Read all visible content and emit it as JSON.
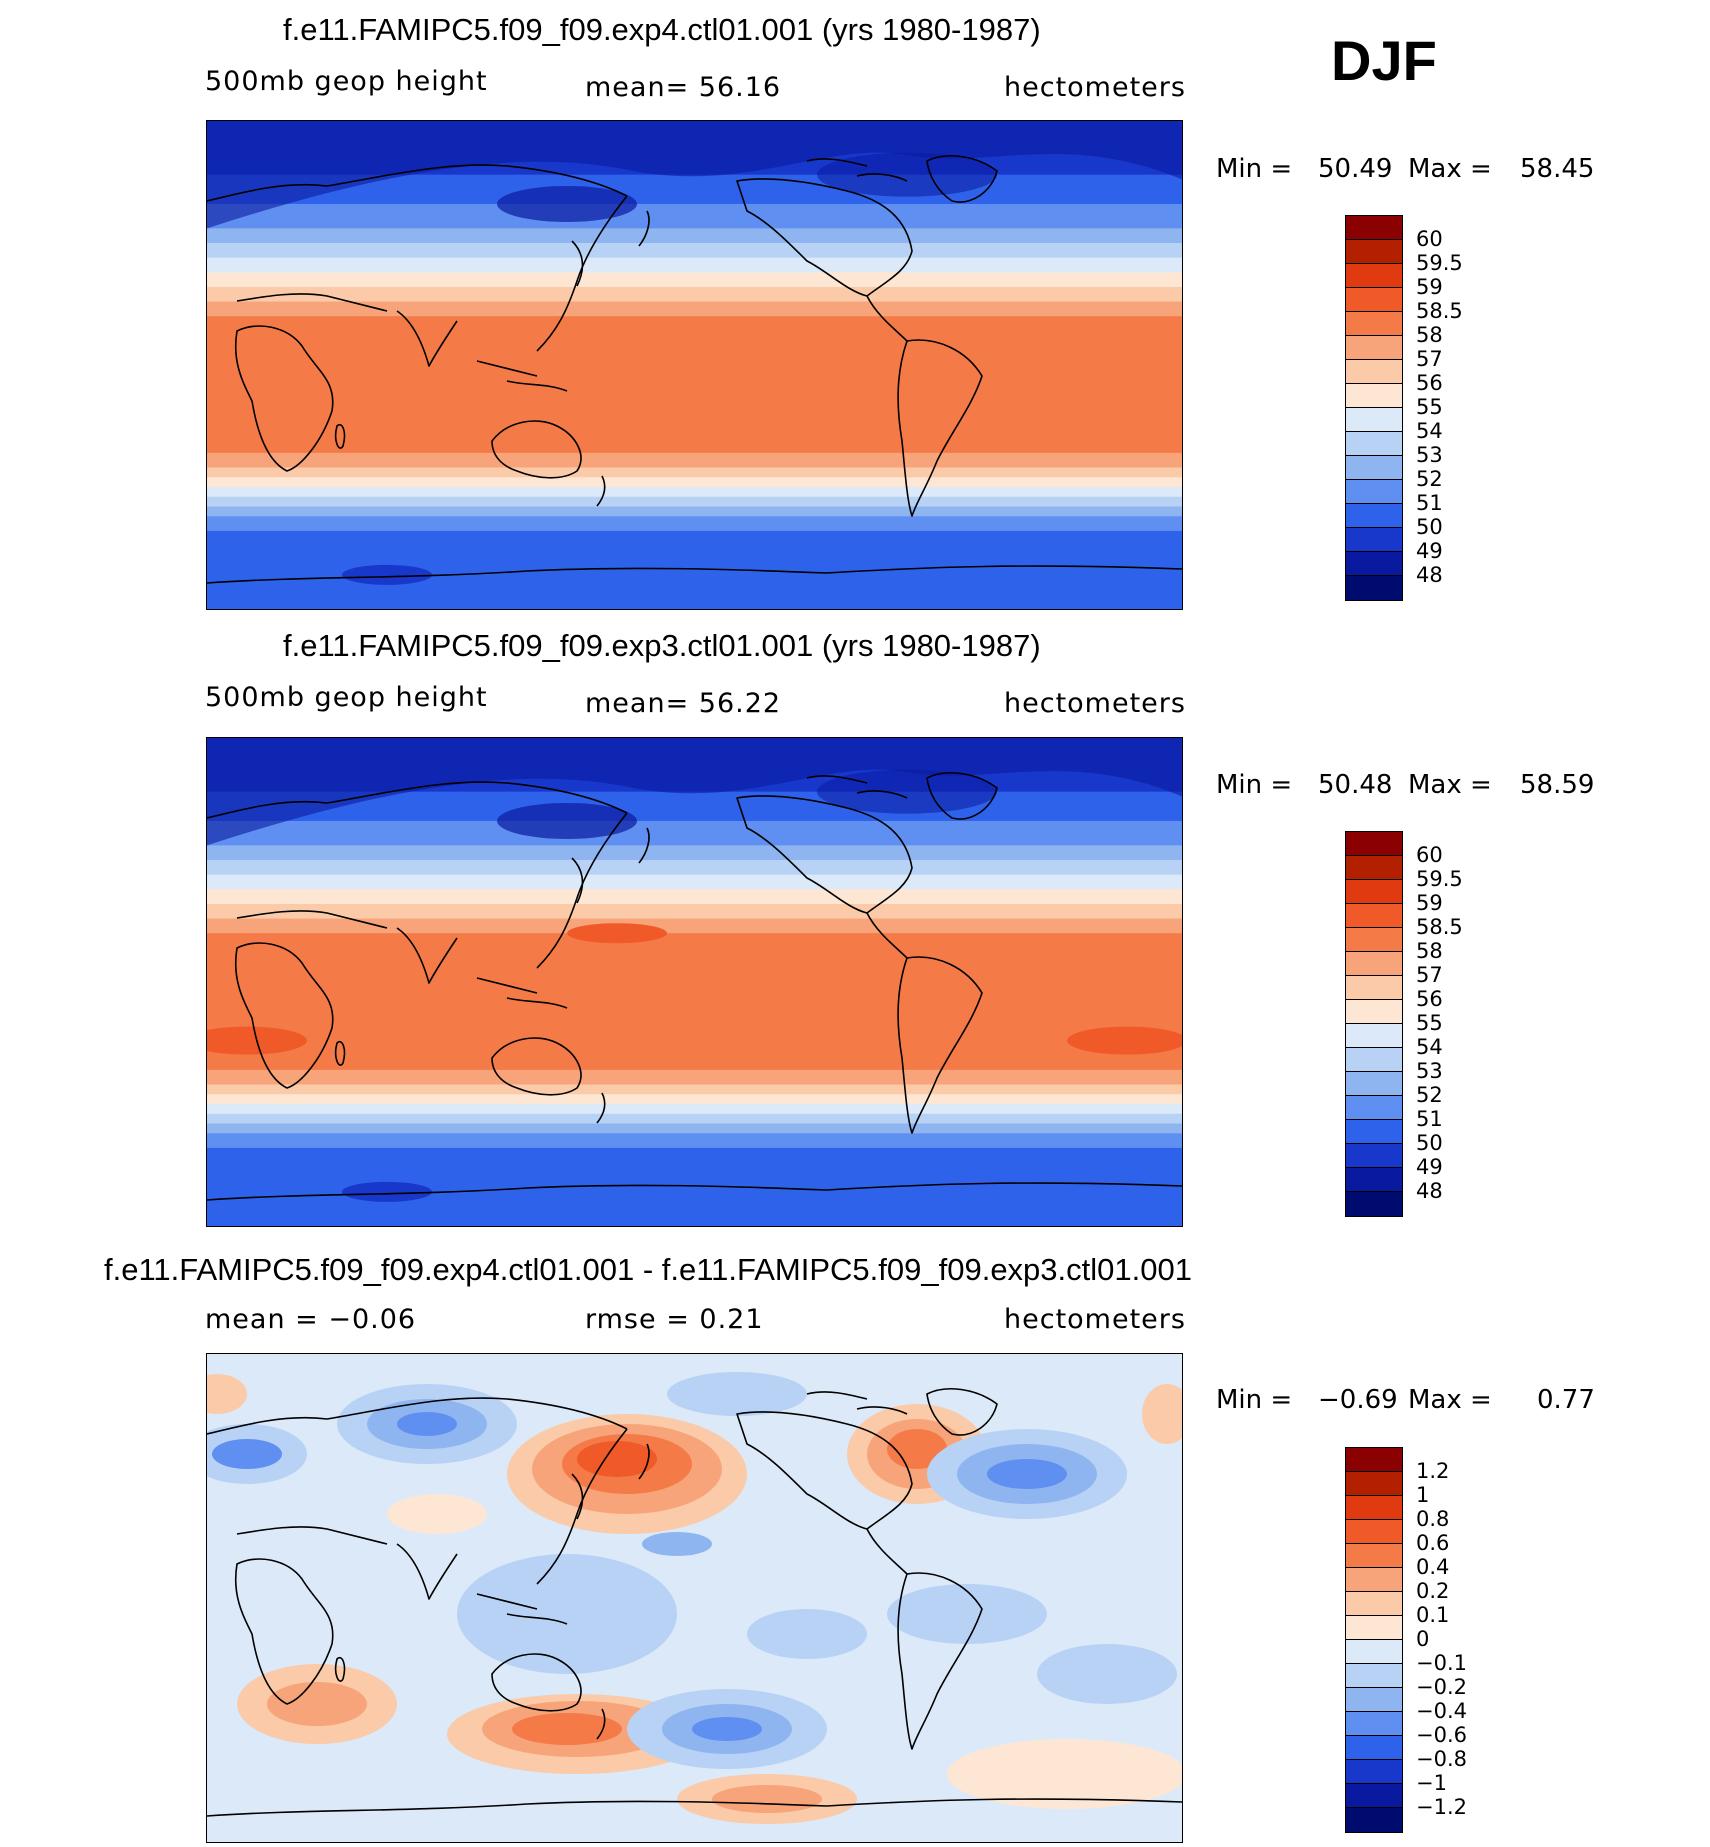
{
  "season": "DJF",
  "panels": [
    {
      "title": "f.e11.FAMIPC5.f09_f09.exp4.ctl01.001 (yrs 1980-1987)",
      "left_label": "500mb geop height",
      "center_label": "mean=   56.16",
      "right_label": "hectometers",
      "min_label": "Min =",
      "min_value": "50.49",
      "max_label": "Max =",
      "max_value": "58.45",
      "colorbar_labels": [
        "60",
        "59.5",
        "59",
        "58.5",
        "58",
        "57",
        "56",
        "55",
        "54",
        "53",
        "52",
        "51",
        "50",
        "49",
        "48"
      ],
      "colorbar_colors": [
        "#8b0000",
        "#b22000",
        "#e03a10",
        "#f05a28",
        "#f47a48",
        "#f7a47a",
        "#fbcaa8",
        "#fde7d4",
        "#dbe9f8",
        "#b8d2f5",
        "#8fb5f0",
        "#5f8ff0",
        "#2f62ea",
        "#1838cc",
        "#0a1aa0",
        "#000b70"
      ],
      "field": "height",
      "field_mean": 56.16,
      "field_min": 50.49,
      "field_max": 58.45
    },
    {
      "title": "f.e11.FAMIPC5.f09_f09.exp3.ctl01.001 (yrs 1980-1987)",
      "left_label": "500mb geop height",
      "center_label": "mean=   56.22",
      "right_label": "hectometers",
      "min_label": "Min =",
      "min_value": "50.48",
      "max_label": "Max =",
      "max_value": "58.59",
      "colorbar_labels": [
        "60",
        "59.5",
        "59",
        "58.5",
        "58",
        "57",
        "56",
        "55",
        "54",
        "53",
        "52",
        "51",
        "50",
        "49",
        "48"
      ],
      "colorbar_colors": [
        "#8b0000",
        "#b22000",
        "#e03a10",
        "#f05a28",
        "#f47a48",
        "#f7a47a",
        "#fbcaa8",
        "#fde7d4",
        "#dbe9f8",
        "#b8d2f5",
        "#8fb5f0",
        "#5f8ff0",
        "#2f62ea",
        "#1838cc",
        "#0a1aa0",
        "#000b70"
      ],
      "field": "height",
      "field_mean": 56.22,
      "field_min": 50.48,
      "field_max": 58.59
    },
    {
      "title": "f.e11.FAMIPC5.f09_f09.exp4.ctl01.001 - f.e11.FAMIPC5.f09_f09.exp3.ctl01.001",
      "left_label": "mean =   −0.06",
      "center_label": "rmse =    0.21",
      "right_label": "hectometers",
      "min_label": "Min =",
      "min_value": "−0.69",
      "max_label": "Max =",
      "max_value": "0.77",
      "colorbar_labels": [
        "1.2",
        "1",
        "0.8",
        "0.6",
        "0.4",
        "0.2",
        "0.1",
        "0",
        "−0.1",
        "−0.2",
        "−0.4",
        "−0.6",
        "−0.8",
        "−1",
        "−1.2"
      ],
      "colorbar_colors": [
        "#8b0000",
        "#b22000",
        "#e03a10",
        "#f05a28",
        "#f47a48",
        "#f7a47a",
        "#fbcaa8",
        "#fde7d4",
        "#dbe9f8",
        "#b8d2f5",
        "#8fb5f0",
        "#5f8ff0",
        "#2f62ea",
        "#1838cc",
        "#0a1aa0",
        "#000b70"
      ],
      "field": "difference",
      "field_mean": -0.06,
      "field_rmse": 0.21,
      "field_min": -0.69,
      "field_max": 0.77
    }
  ]
}
